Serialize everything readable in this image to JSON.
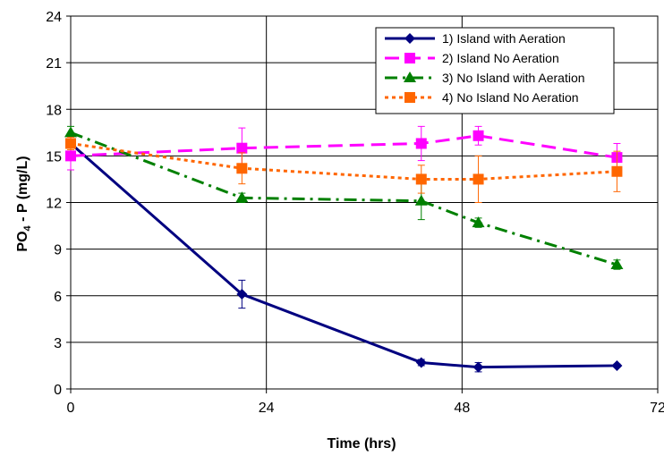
{
  "chart_data": {
    "type": "line",
    "xlabel": "Time (hrs)",
    "ylabel_main": "PO",
    "ylabel_sub": "4",
    "ylabel_rest": " - P (mg/L)",
    "xlim": [
      0,
      72
    ],
    "ylim": [
      0,
      24
    ],
    "xticks": [
      0,
      24,
      48,
      72
    ],
    "yticks": [
      0,
      3,
      6,
      9,
      12,
      15,
      18,
      21,
      24
    ],
    "grid": true,
    "legend_position": "top-right",
    "series": [
      {
        "name": "1) Island with Aeration",
        "color": "#000080",
        "dash": "solid",
        "marker": "diamond",
        "x": [
          0,
          21,
          43,
          50,
          67
        ],
        "y": [
          15.8,
          6.1,
          1.7,
          1.4,
          1.5
        ],
        "err": [
          0.6,
          0.9,
          0.2,
          0.3,
          0.1
        ]
      },
      {
        "name": "2) Island No Aeration",
        "color": "#FF00FF",
        "dash": "longdash",
        "marker": "square",
        "x": [
          0,
          21,
          43,
          50,
          67
        ],
        "y": [
          15.0,
          15.5,
          15.8,
          16.3,
          14.9
        ],
        "err": [
          0.9,
          1.3,
          1.1,
          0.6,
          0.9
        ]
      },
      {
        "name": "3) No Island with Aeration",
        "color": "#008000",
        "dash": "dashdot",
        "marker": "triangle",
        "x": [
          0,
          21,
          43,
          50,
          67
        ],
        "y": [
          16.5,
          12.3,
          12.1,
          10.7,
          8.0
        ],
        "err": [
          0.4,
          0.3,
          1.2,
          0.3,
          0.3
        ]
      },
      {
        "name": "4) No Island No Aeration",
        "color": "#FF6600",
        "dash": "dotted",
        "marker": "square",
        "x": [
          0,
          21,
          43,
          50,
          67
        ],
        "y": [
          15.8,
          14.2,
          13.5,
          13.5,
          14.0
        ],
        "err": [
          0.4,
          1.0,
          0.9,
          1.5,
          1.3
        ]
      }
    ]
  }
}
